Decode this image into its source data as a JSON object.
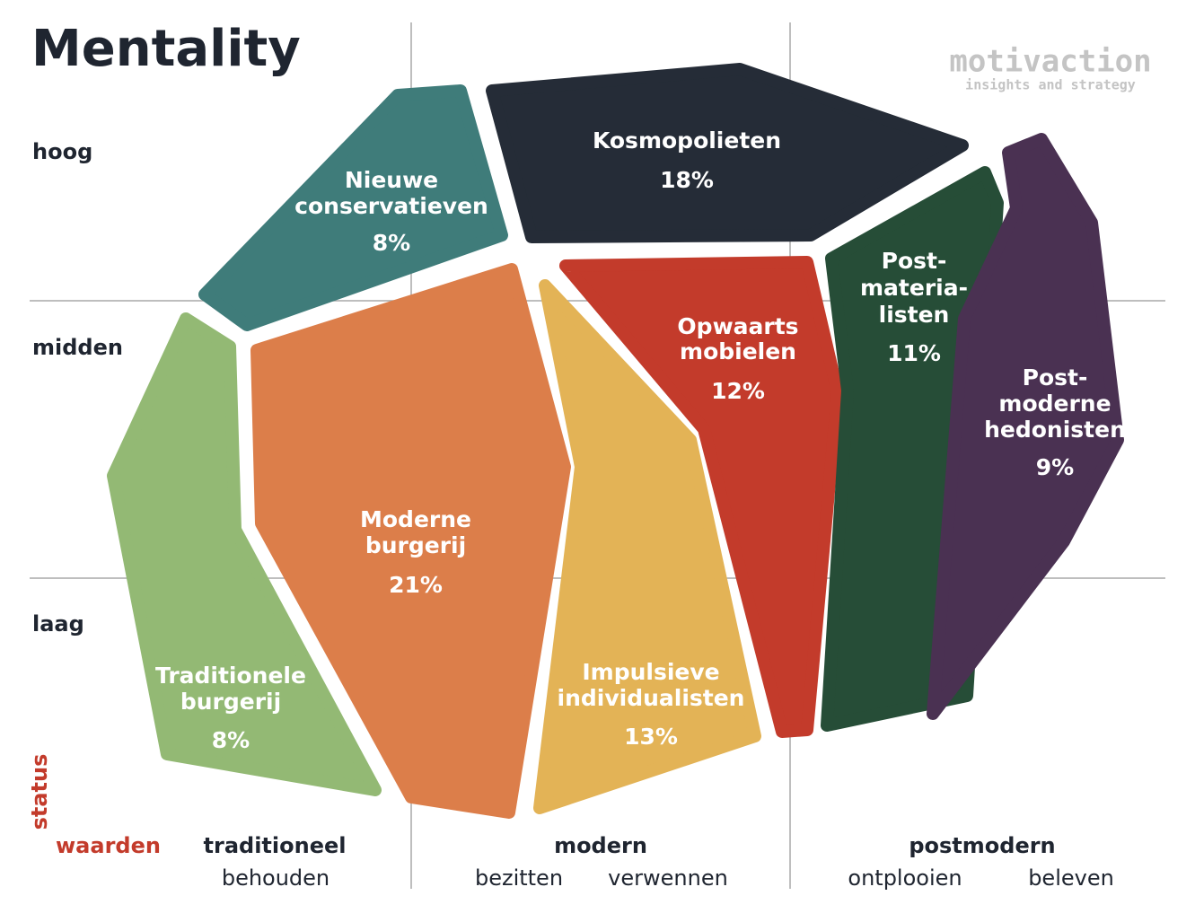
{
  "header": {
    "title": "Mentality",
    "logo": "motivaction",
    "logo_tagline": "insights and strategy"
  },
  "y_axis": {
    "name": "status",
    "levels": [
      "hoog",
      "midden",
      "laag"
    ]
  },
  "x_axis": {
    "name": "waarden",
    "groups": [
      {
        "label": "traditioneel",
        "sublabels": [
          "behouden"
        ]
      },
      {
        "label": "modern",
        "sublabels": [
          "bezitten",
          "verwennen"
        ]
      },
      {
        "label": "postmodern",
        "sublabels": [
          "ontplooien",
          "beleven"
        ]
      }
    ]
  },
  "segments": [
    {
      "name": [
        "Nieuwe",
        "conservatieven"
      ],
      "share": "8%"
    },
    {
      "name": [
        "Kosmopolieten"
      ],
      "share": "18%"
    },
    {
      "name": [
        "Post-",
        "materia-",
        "listen"
      ],
      "share": "11%"
    },
    {
      "name": [
        "Opwaarts",
        "mobielen"
      ],
      "share": "12%"
    },
    {
      "name": [
        "Post-",
        "moderne",
        "hedonisten"
      ],
      "share": "9%"
    },
    {
      "name": [
        "Moderne",
        "burgerij"
      ],
      "share": "21%"
    },
    {
      "name": [
        "Traditionele",
        "burgerij"
      ],
      "share": "8%"
    },
    {
      "name": [
        "Impulsieve",
        "individualisten"
      ],
      "share": "13%"
    }
  ]
}
